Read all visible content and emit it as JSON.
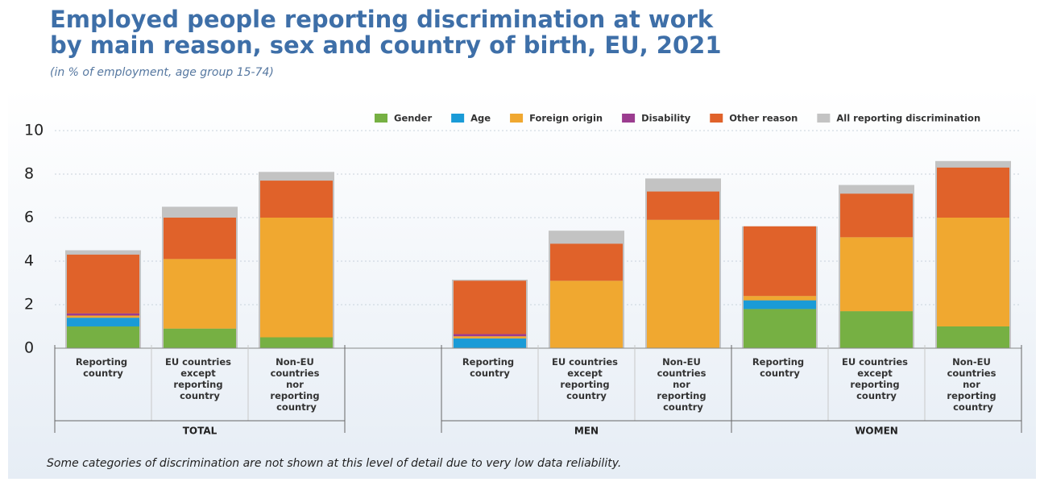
{
  "chart_data": {
    "type": "stacked-bar",
    "title": "Employed people reporting discrimination at work",
    "title_line2": "by main reason, sex and country of birth, EU, 2021",
    "subtitle": "(in % of employment, age group 15-74)",
    "note": "Some categories of discrimination are not shown at this level of detail due to very low data reliability.",
    "categories": [
      "Reporting country",
      "EU countries except reporting country",
      "Non-EU countries nor reporting country",
      null,
      "Reporting country",
      "EU countries except reporting country",
      "Non-EU countries nor reporting country",
      "Reporting country",
      "EU countries except reporting country",
      "Non-EU countries nor reporting country"
    ],
    "category_groups": [
      "TOTAL",
      "TOTAL",
      "TOTAL",
      null,
      "MEN",
      "MEN",
      "MEN",
      "WOMEN",
      "WOMEN",
      "WOMEN"
    ],
    "series": [
      {
        "name": "Gender",
        "color": "#76b043",
        "values": [
          1.0,
          0.9,
          0.5,
          null,
          null,
          null,
          null,
          1.8,
          1.7,
          1.0
        ]
      },
      {
        "name": "Age",
        "color": "#1a9bd7",
        "values": [
          0.4,
          null,
          null,
          null,
          0.45,
          null,
          null,
          0.4,
          null,
          null
        ]
      },
      {
        "name": "Foreign origin",
        "color": "#f0a830",
        "values": [
          0.1,
          3.2,
          5.5,
          null,
          0.1,
          3.1,
          5.9,
          0.2,
          3.4,
          5.0
        ]
      },
      {
        "name": "Disability",
        "color": "#9b3c8f",
        "values": [
          0.1,
          null,
          null,
          null,
          0.1,
          null,
          null,
          null,
          null,
          null
        ]
      },
      {
        "name": "Other reason",
        "color": "#e0622a",
        "values": [
          2.7,
          1.9,
          1.7,
          null,
          2.45,
          1.7,
          1.3,
          3.2,
          2.0,
          2.3
        ]
      }
    ],
    "total_series": {
      "name": "All reporting discrimination",
      "color": "#c3c3c3",
      "values": [
        4.5,
        6.5,
        8.1,
        null,
        3.15,
        5.4,
        7.8,
        5.6,
        7.5,
        8.6
      ]
    },
    "ylim": [
      0,
      10
    ],
    "yticks": [
      0,
      2,
      4,
      6,
      8,
      10
    ],
    "grid": true,
    "legend_position": "top-right"
  }
}
